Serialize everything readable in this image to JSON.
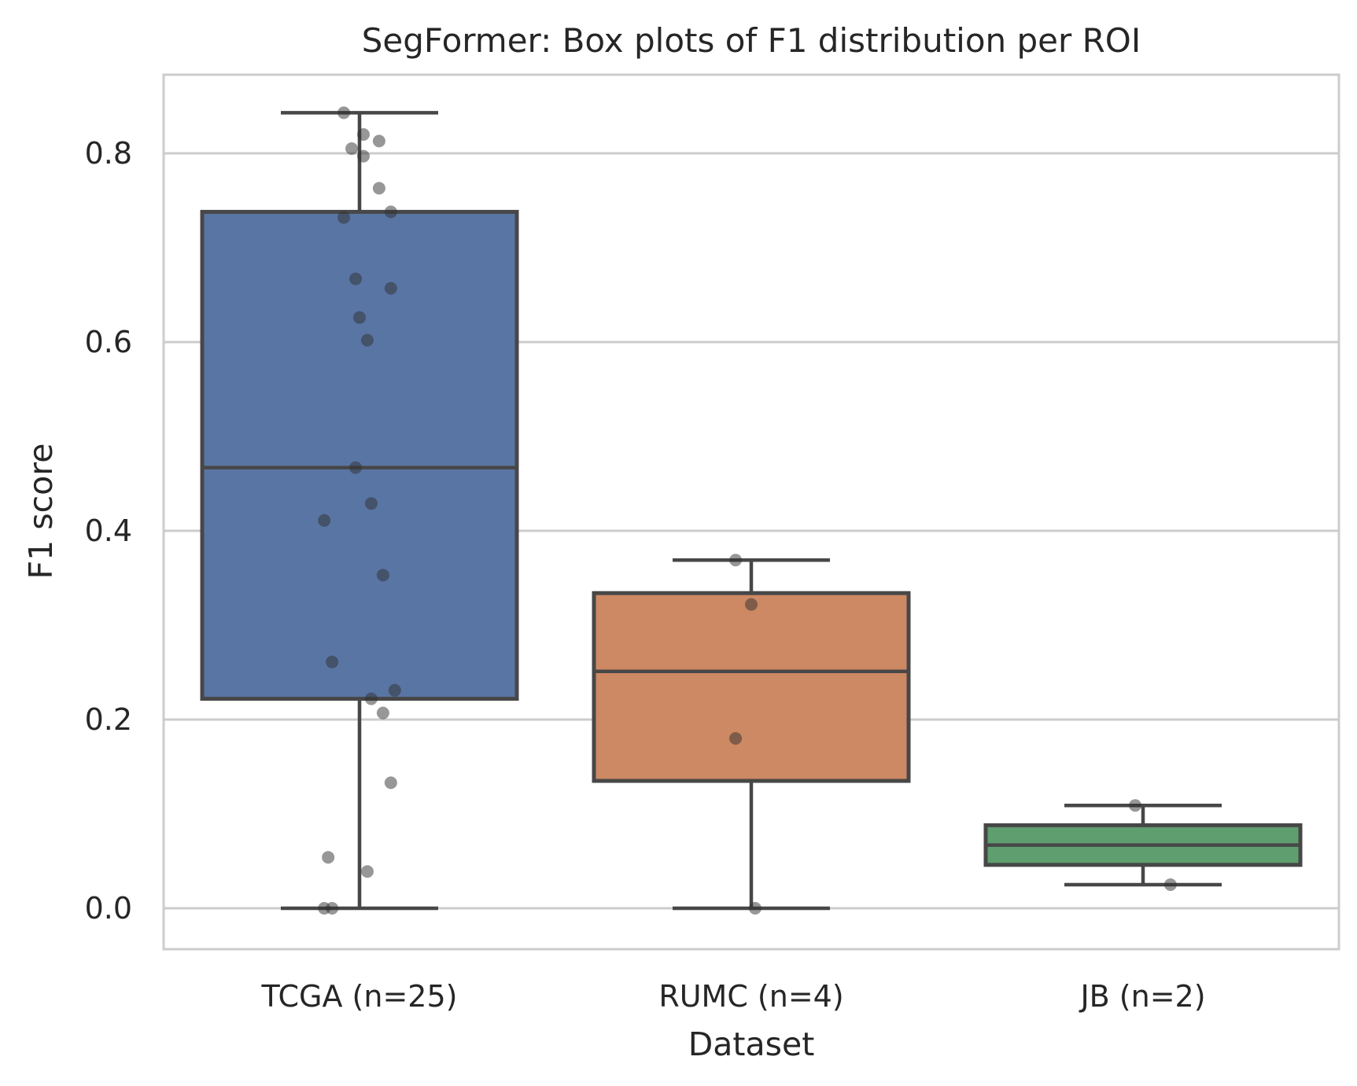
{
  "chart_data": {
    "type": "box",
    "title": "SegFormer: Box plots of F1 distribution per ROI",
    "xlabel": "Dataset",
    "ylabel": "F1 score",
    "ylim": [
      -0.04,
      0.885
    ],
    "yticks": [
      "0.0",
      "0.2",
      "0.4",
      "0.6",
      "0.8"
    ],
    "grid": true,
    "colors": {
      "box_line": "#474747",
      "grid": "#cccccc",
      "frame": "#cccccc",
      "point": "#2f2f2f"
    },
    "categories": [
      "TCGA (n=25)",
      "RUMC (n=4)",
      "JB (n=2)"
    ],
    "series": [
      {
        "category": "TCGA (n=25)",
        "color": "#5975a4",
        "whisker_low": 0.0,
        "q1": 0.222,
        "median": 0.467,
        "q3": 0.738,
        "whisker_high": 0.843,
        "points": [
          {
            "x": -0.04,
            "y": 0.843
          },
          {
            "x": 0.01,
            "y": 0.82
          },
          {
            "x": 0.05,
            "y": 0.813
          },
          {
            "x": -0.02,
            "y": 0.805
          },
          {
            "x": 0.01,
            "y": 0.797
          },
          {
            "x": 0.05,
            "y": 0.763
          },
          {
            "x": 0.08,
            "y": 0.738
          },
          {
            "x": -0.04,
            "y": 0.732
          },
          {
            "x": -0.01,
            "y": 0.667
          },
          {
            "x": 0.08,
            "y": 0.657
          },
          {
            "x": 0.0,
            "y": 0.626
          },
          {
            "x": 0.02,
            "y": 0.602
          },
          {
            "x": -0.01,
            "y": 0.467
          },
          {
            "x": 0.03,
            "y": 0.429
          },
          {
            "x": -0.09,
            "y": 0.411
          },
          {
            "x": 0.06,
            "y": 0.353
          },
          {
            "x": -0.07,
            "y": 0.261
          },
          {
            "x": 0.09,
            "y": 0.231
          },
          {
            "x": 0.03,
            "y": 0.222
          },
          {
            "x": 0.06,
            "y": 0.207
          },
          {
            "x": 0.08,
            "y": 0.133
          },
          {
            "x": -0.08,
            "y": 0.054
          },
          {
            "x": 0.02,
            "y": 0.039
          },
          {
            "x": -0.09,
            "y": 0.0
          },
          {
            "x": -0.07,
            "y": 0.0
          }
        ]
      },
      {
        "category": "RUMC (n=4)",
        "color": "#cc8963",
        "whisker_low": 0.0,
        "q1": 0.135,
        "median": 0.251,
        "q3": 0.334,
        "whisker_high": 0.369,
        "points": [
          {
            "x": -0.04,
            "y": 0.369
          },
          {
            "x": 0.0,
            "y": 0.322
          },
          {
            "x": -0.04,
            "y": 0.18
          },
          {
            "x": 0.01,
            "y": 0.0
          }
        ]
      },
      {
        "category": "JB (n=2)",
        "color": "#5f9e6e",
        "whisker_low": 0.025,
        "q1": 0.046,
        "median": 0.067,
        "q3": 0.088,
        "whisker_high": 0.109,
        "points": [
          {
            "x": -0.02,
            "y": 0.109
          },
          {
            "x": 0.07,
            "y": 0.025
          }
        ]
      }
    ]
  }
}
